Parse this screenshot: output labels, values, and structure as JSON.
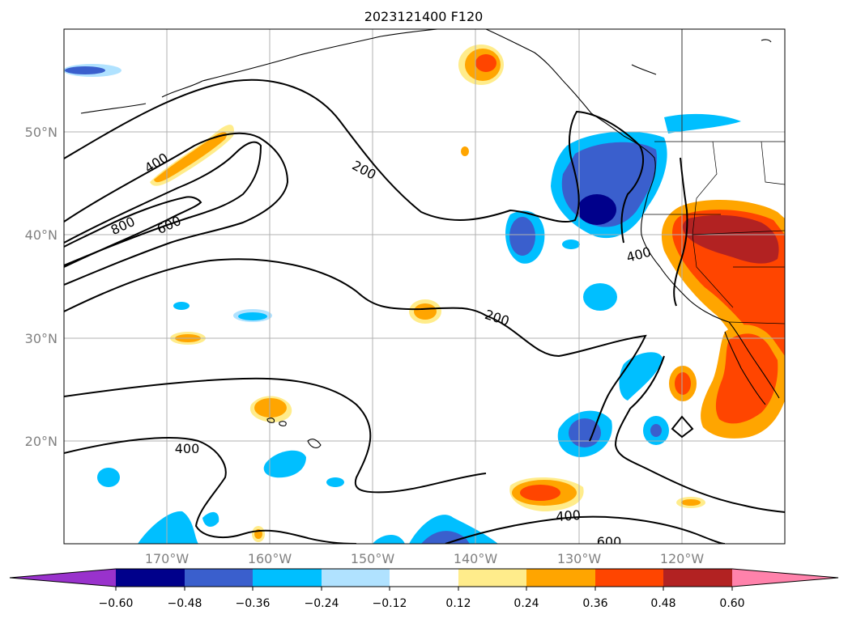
{
  "title": "2023121400 F120",
  "map": {
    "lon_range": [
      180,
      110
    ],
    "lat_range": [
      10,
      60
    ],
    "lon_ticks": [
      "170°W",
      "160°W",
      "150°W",
      "140°W",
      "130°W",
      "120°W"
    ],
    "lat_ticks": [
      "20°N",
      "30°N",
      "40°N",
      "50°N"
    ],
    "contour_levels": [
      "200",
      "400",
      "600",
      "800"
    ]
  },
  "colorbar": {
    "levels": [
      "−0.60",
      "−0.48",
      "−0.36",
      "−0.24",
      "−0.12",
      "0.12",
      "0.24",
      "0.36",
      "0.48",
      "0.60"
    ],
    "colors": [
      "#9932cc",
      "#00008b",
      "#3a5fcd",
      "#00bfff",
      "#b0e2ff",
      "#ffffff",
      "#ffec8b",
      "#ffa500",
      "#ff4500",
      "#b22222",
      "#ff82ab"
    ]
  },
  "contour_labels": [
    {
      "text": "400"
    },
    {
      "text": "800"
    },
    {
      "text": "600"
    },
    {
      "text": "200"
    },
    {
      "text": "400"
    },
    {
      "text": "200"
    },
    {
      "text": "400"
    },
    {
      "text": "400"
    },
    {
      "text": "600"
    }
  ]
}
